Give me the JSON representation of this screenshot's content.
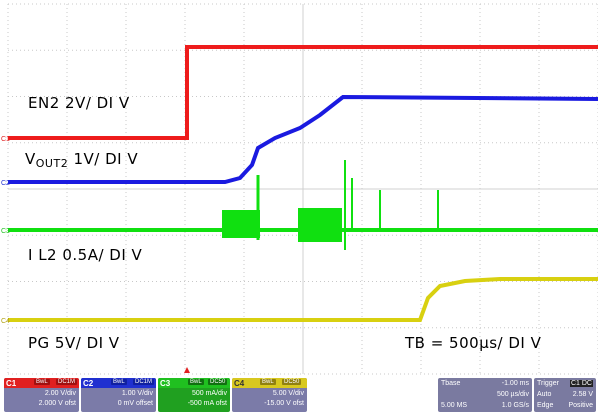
{
  "labels": {
    "en2": "EN2 2V/ DI V",
    "vout_main": "V",
    "vout_sub": "OUT2",
    "vout_scale": " 1V/ DI V",
    "il2": "I L2 0.5A/ DI V",
    "pg": "PG 5V/ DI V",
    "tb": "TB = 500µs/ DI V"
  },
  "channels": [
    {
      "num": "C1",
      "color": "#e02020",
      "v1": "2.00 V/div",
      "v2": "2.000 V ofst"
    },
    {
      "num": "C2",
      "color": "#2030d0",
      "v1": "1.00 V/div",
      "v2": "0 mV offset"
    },
    {
      "num": "C3",
      "color": "#20c020",
      "v1": "500 mA/div",
      "v2": "-500 mA ofst"
    },
    {
      "num": "C4",
      "color": "#d8c820",
      "v1": "5.00 V/div",
      "v2": "-15.00 V ofst"
    }
  ],
  "channel_tags": {
    "bwl": "BwL",
    "dc": "DC1M",
    "dc50": "DC50"
  },
  "timebase": {
    "title": "Tbase",
    "offset": "-1.00 ms",
    "per_div": "500 µs/div",
    "samples": "5.00 MS",
    "rate": "1.0 GS/s"
  },
  "trigger": {
    "title": "Trigger",
    "src": "C1 DC",
    "mode": "Auto",
    "level": "2.58 V",
    "type": "Edge",
    "slope": "Positive"
  },
  "colors": {
    "ch1": "#ee1c1c",
    "ch2": "#1a1ae0",
    "ch3": "#10e010",
    "ch4": "#d8d010",
    "grid": "#c8c8c8",
    "marker": "#e02020"
  }
}
